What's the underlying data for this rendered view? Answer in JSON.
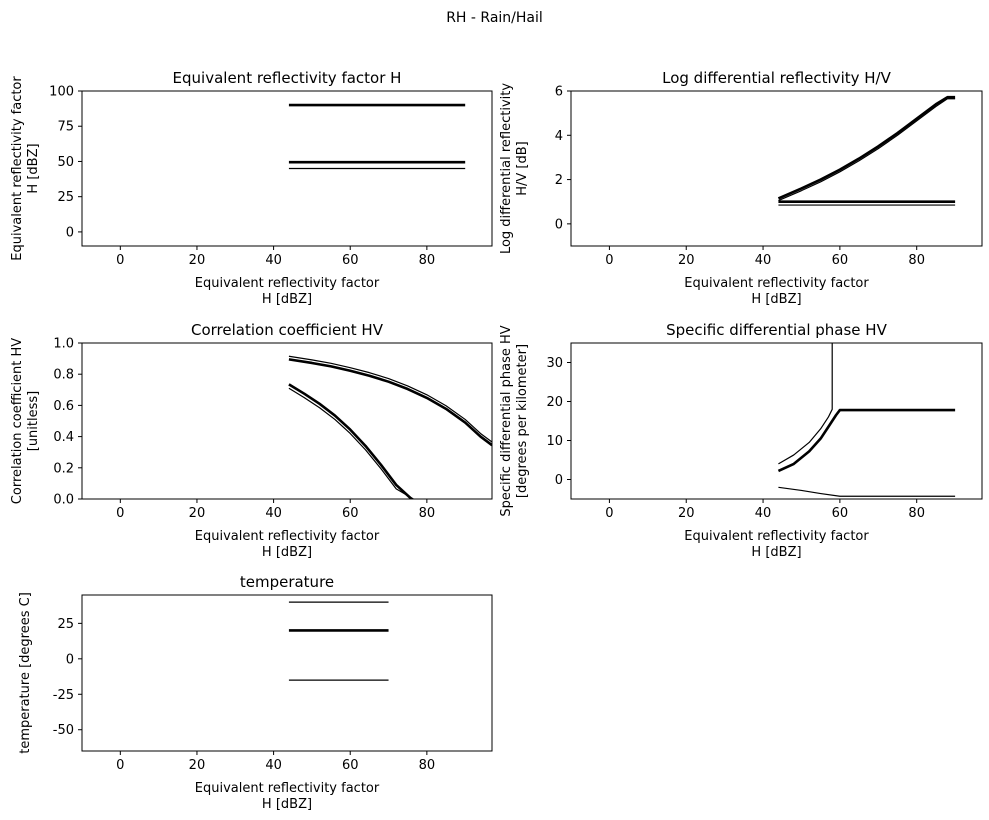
{
  "figure": {
    "title": "RH - Rain/Hail"
  },
  "chart_data": [
    {
      "id": "p1",
      "type": "line",
      "title": "Equivalent reflectivity factor H",
      "xlabel": [
        "Equivalent reflectivity factor",
        "H [dBZ]"
      ],
      "ylabel": [
        "Equivalent reflectivity factor",
        "H [dBZ]"
      ],
      "xlim": [
        -10,
        97
      ],
      "ylim": [
        -10,
        100
      ],
      "xticks": [
        0,
        20,
        40,
        60,
        80
      ],
      "yticks": [
        0,
        25,
        50,
        75,
        100
      ],
      "series": [
        {
          "weight": "thick",
          "x": [
            44,
            90
          ],
          "y": [
            90,
            90
          ]
        },
        {
          "weight": "thick",
          "x": [
            44,
            90
          ],
          "y": [
            49.5,
            49.5
          ]
        },
        {
          "weight": "thin",
          "x": [
            44,
            90
          ],
          "y": [
            45,
            45
          ]
        }
      ]
    },
    {
      "id": "p2",
      "type": "line",
      "title": "Log differential reflectivity H/V",
      "xlabel": [
        "Equivalent reflectivity factor",
        "H [dBZ]"
      ],
      "ylabel": [
        "Log differential reflectivity",
        "H/V [dB]"
      ],
      "xlim": [
        -10,
        97
      ],
      "ylim": [
        -1,
        6
      ],
      "xticks": [
        0,
        20,
        40,
        60,
        80
      ],
      "yticks": [
        0,
        2,
        4,
        6
      ],
      "series": [
        {
          "weight": "thick",
          "x": [
            44,
            50,
            55,
            60,
            65,
            70,
            75,
            80,
            85,
            88,
            90
          ],
          "y": [
            1.15,
            1.6,
            2.0,
            2.45,
            2.95,
            3.5,
            4.1,
            4.75,
            5.4,
            5.72,
            5.72
          ]
        },
        {
          "weight": "thin",
          "x": [
            44,
            50,
            55,
            60,
            65,
            70,
            75,
            80,
            85,
            88,
            90
          ],
          "y": [
            1.05,
            1.5,
            1.9,
            2.35,
            2.85,
            3.4,
            4.0,
            4.65,
            5.3,
            5.65,
            5.65
          ]
        },
        {
          "weight": "thick",
          "x": [
            44,
            90
          ],
          "y": [
            1.0,
            1.0
          ]
        },
        {
          "weight": "thin",
          "x": [
            44,
            90
          ],
          "y": [
            0.85,
            0.85
          ]
        }
      ]
    },
    {
      "id": "p3",
      "type": "line",
      "title": "Correlation coefficient HV",
      "xlabel": [
        "Equivalent reflectivity factor",
        "H [dBZ]"
      ],
      "ylabel": [
        "Correlation coefficient HV",
        "[unitless]"
      ],
      "xlim": [
        -10,
        97
      ],
      "ylim": [
        0,
        1.0
      ],
      "xticks": [
        0,
        20,
        40,
        60,
        80
      ],
      "yticks": [
        0.0,
        0.2,
        0.4,
        0.6,
        0.8,
        1.0
      ],
      "series": [
        {
          "weight": "thick",
          "x": [
            44,
            50,
            55,
            60,
            65,
            70,
            75,
            80,
            85,
            90,
            94,
            97
          ],
          "y": [
            0.895,
            0.872,
            0.85,
            0.822,
            0.79,
            0.752,
            0.705,
            0.648,
            0.578,
            0.49,
            0.4,
            0.345
          ]
        },
        {
          "weight": "thin",
          "x": [
            44,
            50,
            55,
            60,
            65,
            70,
            75,
            80,
            85,
            90,
            94,
            97
          ],
          "y": [
            0.915,
            0.892,
            0.87,
            0.842,
            0.81,
            0.772,
            0.725,
            0.668,
            0.598,
            0.51,
            0.42,
            0.365
          ]
        },
        {
          "weight": "thick",
          "x": [
            44,
            48,
            52,
            56,
            60,
            64,
            68,
            72,
            76
          ],
          "y": [
            0.735,
            0.675,
            0.61,
            0.535,
            0.445,
            0.34,
            0.22,
            0.09,
            0.0
          ]
        },
        {
          "weight": "thin",
          "x": [
            44,
            48,
            52,
            56,
            60,
            64,
            68,
            72,
            76.5
          ],
          "y": [
            0.71,
            0.65,
            0.585,
            0.51,
            0.42,
            0.315,
            0.195,
            0.065,
            0.0
          ]
        }
      ]
    },
    {
      "id": "p4",
      "type": "line",
      "title": "Specific differential phase HV",
      "xlabel": [
        "Equivalent reflectivity factor",
        "H [dBZ]"
      ],
      "ylabel": [
        "Specific differential phase HV",
        "[degrees per kilometer]"
      ],
      "xlim": [
        -10,
        97
      ],
      "ylim": [
        -5,
        35
      ],
      "xticks": [
        0,
        20,
        40,
        60,
        80
      ],
      "yticks": [
        0,
        10,
        20,
        30
      ],
      "series": [
        {
          "weight": "thick",
          "x": [
            44,
            48,
            52,
            55,
            57,
            59,
            60,
            90
          ],
          "y": [
            2.2,
            4.0,
            7.2,
            10.5,
            13.5,
            16.5,
            17.8,
            17.8
          ]
        },
        {
          "weight": "thin",
          "x": [
            44,
            48,
            52,
            55,
            57,
            58,
            58,
            58
          ],
          "y": [
            4.0,
            6.3,
            9.5,
            13.0,
            16.0,
            18.0,
            30,
            35
          ]
        },
        {
          "weight": "thin",
          "x": [
            44,
            50,
            55,
            60,
            90
          ],
          "y": [
            -2.0,
            -2.8,
            -3.6,
            -4.3,
            -4.3
          ]
        }
      ]
    },
    {
      "id": "p5",
      "type": "line",
      "title": "temperature",
      "xlabel": [
        "Equivalent reflectivity factor",
        "H [dBZ]"
      ],
      "ylabel": [
        "temperature [degrees C]"
      ],
      "xlim": [
        -10,
        97
      ],
      "ylim": [
        -65,
        45
      ],
      "xticks": [
        0,
        20,
        40,
        60,
        80
      ],
      "yticks": [
        -50,
        -25,
        0,
        25
      ],
      "series": [
        {
          "weight": "thin",
          "x": [
            44,
            70
          ],
          "y": [
            40,
            40
          ]
        },
        {
          "weight": "thick",
          "x": [
            44,
            70
          ],
          "y": [
            20,
            20
          ]
        },
        {
          "weight": "thin",
          "x": [
            44,
            70
          ],
          "y": [
            -15,
            -15
          ]
        }
      ]
    }
  ]
}
